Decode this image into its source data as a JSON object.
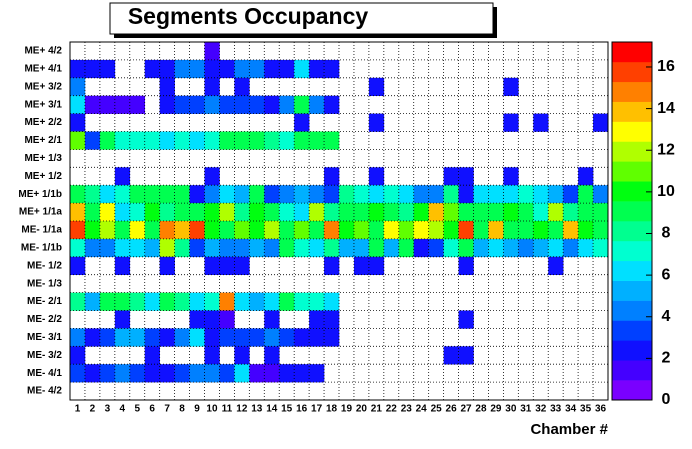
{
  "chart_data": {
    "type": "heatmap",
    "title": "Segments Occupancy",
    "x_label": "Chamber #",
    "categories": [
      "1",
      "2",
      "3",
      "4",
      "5",
      "6",
      "7",
      "8",
      "9",
      "10",
      "11",
      "12",
      "13",
      "14",
      "15",
      "16",
      "17",
      "18",
      "19",
      "20",
      "21",
      "22",
      "23",
      "24",
      "25",
      "26",
      "27",
      "28",
      "29",
      "30",
      "31",
      "32",
      "33",
      "34",
      "35",
      "36"
    ],
    "rows": [
      "ME+ 4/2",
      "ME+ 4/1",
      "ME+ 3/2",
      "ME+ 3/1",
      "ME+ 2/2",
      "ME+ 2/1",
      "ME+ 1/3",
      "ME+ 1/2",
      "ME+ 1/1b",
      "ME+ 1/1a",
      "ME- 1/1a",
      "ME- 1/1b",
      "ME- 1/2",
      "ME- 1/3",
      "ME- 2/1",
      "ME- 2/2",
      "ME- 3/1",
      "ME- 3/2",
      "ME- 4/1",
      "ME- 4/2"
    ],
    "values": [
      [
        0,
        0,
        0,
        0,
        0,
        0,
        0,
        0,
        0,
        1,
        0,
        0,
        0,
        0,
        0,
        0,
        0,
        0,
        0,
        0,
        0,
        0,
        0,
        0,
        0,
        0,
        0,
        0,
        0,
        0,
        0,
        0,
        0,
        0,
        0,
        0
      ],
      [
        2,
        2,
        2,
        0,
        0,
        2,
        2,
        4,
        4,
        2,
        2,
        4,
        4,
        2,
        2,
        6,
        2,
        2,
        0,
        0,
        0,
        0,
        0,
        0,
        0,
        0,
        0,
        0,
        0,
        0,
        0,
        0,
        0,
        0,
        0,
        0
      ],
      [
        4,
        0,
        0,
        0,
        0,
        0,
        2,
        0,
        0,
        2,
        0,
        2,
        0,
        0,
        0,
        0,
        0,
        0,
        0,
        0,
        2,
        0,
        0,
        0,
        0,
        0,
        0,
        0,
        0,
        2,
        0,
        0,
        0,
        0,
        0,
        0
      ],
      [
        6,
        1,
        1,
        1,
        1,
        0,
        2,
        3,
        3,
        4,
        3,
        3,
        3,
        2,
        4,
        9,
        4,
        2,
        0,
        0,
        0,
        0,
        0,
        0,
        0,
        0,
        0,
        0,
        0,
        0,
        0,
        0,
        0,
        0,
        0,
        0
      ],
      [
        2,
        0,
        0,
        0,
        0,
        0,
        0,
        0,
        0,
        0,
        0,
        0,
        0,
        0,
        0,
        2,
        0,
        0,
        0,
        0,
        2,
        0,
        0,
        0,
        0,
        0,
        0,
        0,
        0,
        2,
        0,
        2,
        0,
        0,
        0,
        2
      ],
      [
        11,
        3,
        9,
        7,
        7,
        7,
        6,
        7,
        6,
        7,
        9,
        9,
        9,
        8,
        7,
        9,
        9,
        9,
        0,
        0,
        0,
        0,
        0,
        0,
        0,
        0,
        0,
        0,
        0,
        0,
        0,
        0,
        0,
        0,
        0,
        0
      ],
      [
        0,
        0,
        0,
        0,
        0,
        0,
        0,
        0,
        0,
        0,
        0,
        0,
        0,
        0,
        0,
        0,
        0,
        0,
        0,
        0,
        0,
        0,
        0,
        0,
        0,
        0,
        0,
        0,
        0,
        0,
        0,
        0,
        0,
        0,
        0,
        0
      ],
      [
        0,
        0,
        0,
        2,
        0,
        0,
        0,
        0,
        0,
        2,
        0,
        0,
        0,
        0,
        0,
        0,
        0,
        2,
        0,
        0,
        2,
        0,
        0,
        0,
        0,
        2,
        2,
        0,
        0,
        2,
        0,
        0,
        0,
        0,
        2,
        0
      ],
      [
        9,
        8,
        6,
        7,
        9,
        9,
        9,
        9,
        2,
        4,
        6,
        5,
        9,
        3,
        4,
        5,
        4,
        3,
        8,
        7,
        6,
        7,
        6,
        4,
        4,
        8,
        2,
        6,
        6,
        6,
        7,
        6,
        5,
        3,
        9,
        4
      ],
      [
        14,
        9,
        13,
        6,
        7,
        10,
        8,
        9,
        9,
        10,
        12,
        8,
        10,
        9,
        7,
        6,
        12,
        8,
        9,
        9,
        10,
        9,
        8,
        10,
        14,
        11,
        9,
        9,
        9,
        10,
        9,
        7,
        12,
        8,
        9,
        9
      ],
      [
        16,
        10,
        12,
        9,
        13,
        9,
        15,
        14,
        16,
        10,
        9,
        11,
        10,
        12,
        9,
        11,
        9,
        15,
        10,
        11,
        9,
        13,
        11,
        13,
        12,
        10,
        16,
        9,
        14,
        9,
        9,
        10,
        9,
        14,
        10,
        9
      ],
      [
        7,
        4,
        4,
        6,
        6,
        5,
        12,
        8,
        3,
        5,
        4,
        4,
        5,
        4,
        9,
        7,
        6,
        8,
        5,
        5,
        9,
        5,
        9,
        2,
        3,
        7,
        9,
        5,
        6,
        5,
        4,
        5,
        6,
        4,
        6,
        7
      ],
      [
        2,
        0,
        0,
        2,
        0,
        0,
        2,
        0,
        0,
        2,
        2,
        2,
        0,
        0,
        0,
        0,
        0,
        2,
        0,
        2,
        2,
        0,
        0,
        0,
        0,
        0,
        2,
        0,
        0,
        0,
        0,
        0,
        2,
        0,
        0,
        0
      ],
      [
        0,
        0,
        0,
        0,
        0,
        0,
        0,
        0,
        0,
        0,
        0,
        0,
        0,
        0,
        0,
        0,
        0,
        0,
        0,
        0,
        0,
        0,
        0,
        0,
        0,
        0,
        0,
        0,
        0,
        0,
        0,
        0,
        0,
        0,
        0,
        0
      ],
      [
        8,
        5,
        9,
        9,
        8,
        6,
        9,
        8,
        6,
        7,
        15,
        6,
        5,
        6,
        9,
        7,
        7,
        6,
        0,
        0,
        0,
        0,
        0,
        0,
        0,
        0,
        0,
        0,
        0,
        0,
        0,
        0,
        0,
        0,
        0,
        0
      ],
      [
        0,
        0,
        0,
        2,
        0,
        0,
        0,
        0,
        2,
        2,
        1,
        0,
        0,
        2,
        0,
        0,
        2,
        2,
        0,
        0,
        0,
        0,
        0,
        0,
        0,
        0,
        2,
        0,
        0,
        0,
        0,
        0,
        0,
        0,
        0,
        0
      ],
      [
        4,
        2,
        3,
        5,
        5,
        3,
        2,
        4,
        6,
        2,
        3,
        3,
        3,
        4,
        3,
        2,
        2,
        2,
        0,
        0,
        0,
        0,
        0,
        0,
        0,
        0,
        0,
        0,
        0,
        0,
        0,
        0,
        0,
        0,
        0,
        0
      ],
      [
        2,
        0,
        0,
        0,
        0,
        2,
        0,
        0,
        0,
        2,
        0,
        2,
        0,
        2,
        0,
        0,
        0,
        0,
        0,
        0,
        0,
        0,
        0,
        0,
        0,
        2,
        2,
        0,
        0,
        0,
        0,
        0,
        0,
        0,
        0,
        0
      ],
      [
        3,
        2,
        3,
        4,
        3,
        2,
        2,
        3,
        4,
        4,
        3,
        6,
        1,
        1,
        2,
        2,
        2,
        0,
        0,
        0,
        0,
        0,
        0,
        0,
        0,
        0,
        0,
        0,
        0,
        0,
        0,
        0,
        0,
        0,
        0,
        0
      ],
      [
        0,
        0,
        0,
        0,
        0,
        0,
        0,
        0,
        0,
        0,
        0,
        0,
        0,
        0,
        0,
        0,
        0,
        0,
        0,
        0,
        0,
        0,
        0,
        0,
        0,
        0,
        0,
        0,
        0,
        0,
        0,
        0,
        0,
        0,
        0,
        0
      ]
    ],
    "zlim": [
      0,
      17.2
    ],
    "zticks": [
      0,
      2,
      4,
      6,
      8,
      10,
      12,
      14,
      16
    ],
    "colorscale": [
      "#7a00ff",
      "#4400ff",
      "#1010ff",
      "#0040ff",
      "#0080ff",
      "#00b0ff",
      "#00e0ff",
      "#00ffd0",
      "#00ff90",
      "#00ff50",
      "#00ff10",
      "#60ff00",
      "#b0ff00",
      "#ffff00",
      "#ffc000",
      "#ff8000",
      "#ff4000",
      "#ff0000"
    ],
    "grid": true
  }
}
